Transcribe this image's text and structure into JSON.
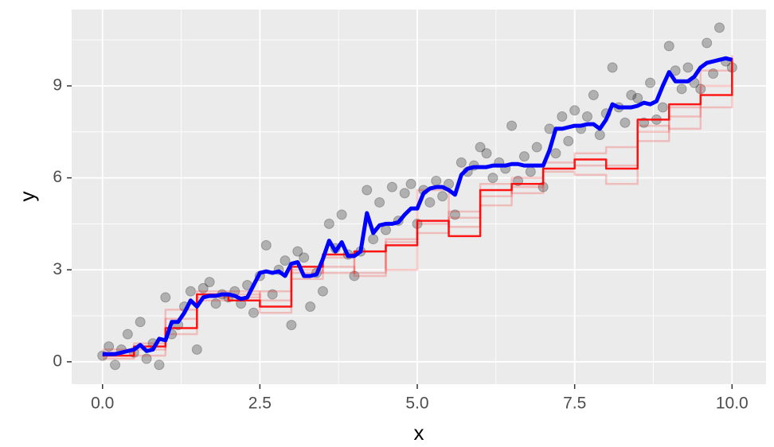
{
  "chart_data": {
    "type": "scatter",
    "xlabel": "x",
    "ylabel": "y",
    "xlim": [
      -0.49,
      10.54
    ],
    "ylim": [
      -0.73,
      11.49
    ],
    "xticks": [
      {
        "value": 0,
        "label": "0.0"
      },
      {
        "value": 2.5,
        "label": "2.5"
      },
      {
        "value": 5,
        "label": "5.0"
      },
      {
        "value": 7.5,
        "label": "7.5"
      },
      {
        "value": 10,
        "label": "10.0"
      }
    ],
    "yticks": [
      0,
      3,
      6,
      9
    ],
    "x_minor_ticks": [
      1.25,
      3.75,
      6.25,
      8.75
    ],
    "y_minor_ticks": [
      1.5,
      4.5,
      7.5,
      10.5
    ],
    "grid": true,
    "point_color": "#000000",
    "point_opacity": 0.25,
    "x": [
      0,
      0.1,
      0.2,
      0.3,
      0.4,
      0.5,
      0.6,
      0.7,
      0.8,
      0.9,
      1,
      1.1,
      1.2,
      1.3,
      1.4,
      1.5,
      1.6,
      1.7,
      1.8,
      1.9,
      2,
      2.1,
      2.2,
      2.3,
      2.4,
      2.5,
      2.6,
      2.7,
      2.8,
      2.9,
      3,
      3.1,
      3.2,
      3.3,
      3.4,
      3.5,
      3.6,
      3.7,
      3.8,
      3.9,
      4,
      4.1,
      4.2,
      4.3,
      4.4,
      4.5,
      4.6,
      4.7,
      4.8,
      4.9,
      5,
      5.1,
      5.2,
      5.3,
      5.4,
      5.5,
      5.6,
      5.7,
      5.8,
      5.9,
      6,
      6.1,
      6.2,
      6.3,
      6.4,
      6.5,
      6.6,
      6.7,
      6.8,
      6.9,
      7,
      7.1,
      7.2,
      7.3,
      7.4,
      7.5,
      7.6,
      7.7,
      7.8,
      7.9,
      8,
      8.1,
      8.2,
      8.3,
      8.4,
      8.5,
      8.6,
      8.7,
      8.8,
      8.9,
      9,
      9.1,
      9.2,
      9.3,
      9.4,
      9.5,
      9.6,
      9.7,
      9.8,
      9.9,
      10
    ],
    "y": [
      0.2,
      0.5,
      -0.1,
      0.4,
      0.9,
      0.3,
      1.3,
      0.1,
      0.6,
      -0.1,
      2.1,
      0.9,
      1.2,
      1.8,
      2.3,
      0.4,
      2.4,
      2.6,
      1.9,
      2.2,
      2.1,
      2.3,
      1.9,
      2.5,
      1.6,
      2.8,
      3.8,
      2.2,
      3.0,
      3.3,
      1.2,
      3.6,
      3.4,
      1.8,
      2.9,
      2.3,
      4.5,
      3.7,
      4.8,
      3.5,
      2.8,
      3.6,
      5.6,
      4.0,
      5.2,
      4.3,
      5.7,
      4.6,
      5.5,
      5.8,
      4.5,
      5.6,
      5.2,
      5.9,
      5.4,
      5.8,
      4.8,
      6.5,
      6.2,
      6.4,
      7.0,
      6.8,
      6.0,
      6.5,
      6.3,
      7.7,
      5.9,
      6.7,
      6.2,
      7.0,
      5.7,
      7.6,
      6.8,
      8.0,
      7.2,
      8.2,
      7.6,
      8.0,
      8.7,
      7.4,
      8.1,
      9.6,
      8.3,
      7.8,
      8.7,
      8.6,
      7.8,
      9.1,
      7.9,
      8.3,
      10.3,
      9.5,
      8.9,
      9.6,
      9.1,
      8.9,
      10.4,
      9.4,
      10.9,
      9.8,
      9.6
    ],
    "lines": [
      {
        "color": "#ff0000",
        "opacity": 0.2,
        "step": true,
        "x": [
          0,
          0.5,
          1,
          1.5,
          2,
          2.5,
          3,
          3.5,
          4,
          4.5,
          5,
          5.5,
          6,
          6.5,
          7,
          7.5,
          8,
          8.5,
          9,
          9.5,
          10
        ],
        "values": [
          0.3,
          0.6,
          1.4,
          2.1,
          2.2,
          1.6,
          2.9,
          3.4,
          2.8,
          4.0,
          5.6,
          4.4,
          5.1,
          5.7,
          6.3,
          6.4,
          6.4,
          7.5,
          8.0,
          8.3,
          9.8
        ]
      },
      {
        "color": "#ff0000",
        "opacity": 0.2,
        "step": true,
        "x": [
          0,
          0.5,
          1,
          1.5,
          2,
          2.5,
          3,
          3.5,
          4,
          4.5,
          5,
          5.5,
          6,
          6.5,
          7,
          7.5,
          8,
          8.5,
          9,
          9.5,
          10
        ],
        "values": [
          0.1,
          0.4,
          0.9,
          2.0,
          2.1,
          2.3,
          3.0,
          2.9,
          3.6,
          3.0,
          4.5,
          4.9,
          5.8,
          5.5,
          6.2,
          6.1,
          5.8,
          7.7,
          7.6,
          9.5,
          9.6
        ]
      },
      {
        "color": "#ff0000",
        "opacity": 0.2,
        "step": true,
        "x": [
          0,
          0.5,
          1,
          1.5,
          2,
          2.5,
          3,
          3.5,
          4,
          4.5,
          5,
          5.5,
          6,
          6.5,
          7,
          7.5,
          8,
          8.5,
          9,
          9.5,
          10
        ],
        "values": [
          0.4,
          0.2,
          1.7,
          2.3,
          2.3,
          2.0,
          2.7,
          3.1,
          2.9,
          3.9,
          4.2,
          4.7,
          5.4,
          6.0,
          6.5,
          6.8,
          7.0,
          7.2,
          8.3,
          9.0,
          10.0
        ]
      },
      {
        "color": "#ff0000",
        "opacity": 0.9,
        "step": true,
        "x": [
          0,
          0.5,
          1,
          1.5,
          2,
          2.5,
          3,
          3.5,
          4,
          4.5,
          5,
          5.5,
          6,
          6.5,
          7,
          7.5,
          8,
          8.5,
          9,
          9.5,
          10
        ],
        "values": [
          0.2,
          0.5,
          1.1,
          2.2,
          2.0,
          1.8,
          3.1,
          3.5,
          3.6,
          3.8,
          4.6,
          4.1,
          5.6,
          5.8,
          6.3,
          6.6,
          6.3,
          7.9,
          8.4,
          8.7,
          9.9
        ]
      },
      {
        "color": "#0000ff",
        "opacity": 1,
        "step": false,
        "x": [
          0,
          0.1,
          0.2,
          0.3,
          0.4,
          0.5,
          0.6,
          0.7,
          0.8,
          0.9,
          1,
          1.1,
          1.2,
          1.3,
          1.4,
          1.5,
          1.6,
          1.7,
          1.8,
          1.9,
          2,
          2.1,
          2.2,
          2.3,
          2.4,
          2.5,
          2.6,
          2.7,
          2.8,
          2.9,
          3,
          3.1,
          3.2,
          3.3,
          3.4,
          3.5,
          3.6,
          3.7,
          3.8,
          3.9,
          4,
          4.1,
          4.2,
          4.3,
          4.4,
          4.5,
          4.6,
          4.7,
          4.8,
          4.9,
          5,
          5.1,
          5.2,
          5.3,
          5.4,
          5.5,
          5.6,
          5.7,
          5.8,
          5.9,
          6,
          6.1,
          6.2,
          6.3,
          6.4,
          6.5,
          6.6,
          6.7,
          6.8,
          6.9,
          7,
          7.1,
          7.2,
          7.3,
          7.4,
          7.5,
          7.6,
          7.7,
          7.8,
          7.9,
          8,
          8.1,
          8.2,
          8.3,
          8.4,
          8.5,
          8.6,
          8.7,
          8.8,
          8.9,
          9,
          9.1,
          9.2,
          9.3,
          9.4,
          9.5,
          9.6,
          9.7,
          9.8,
          9.9,
          10
        ],
        "values": [
          0.25,
          0.25,
          0.25,
          0.3,
          0.35,
          0.4,
          0.55,
          0.35,
          0.4,
          0.75,
          0.7,
          1.3,
          1.3,
          1.6,
          2.0,
          1.8,
          2.1,
          2.15,
          2.15,
          2.2,
          2.2,
          2.15,
          2.05,
          2.1,
          2.5,
          2.9,
          2.95,
          2.9,
          2.95,
          2.8,
          3.2,
          3.25,
          2.8,
          2.8,
          2.85,
          3.35,
          3.95,
          3.6,
          3.9,
          3.45,
          3.45,
          3.6,
          4.85,
          4.2,
          4.45,
          4.5,
          4.5,
          4.55,
          4.8,
          5.0,
          5.0,
          5.5,
          5.65,
          5.7,
          5.7,
          5.6,
          5.45,
          6.1,
          6.3,
          6.35,
          6.35,
          6.35,
          6.4,
          6.4,
          6.4,
          6.45,
          6.45,
          6.4,
          6.4,
          6.4,
          6.4,
          6.9,
          7.6,
          7.6,
          7.65,
          7.7,
          7.7,
          7.75,
          7.75,
          7.6,
          7.9,
          8.4,
          8.3,
          8.3,
          8.3,
          8.35,
          8.45,
          8.4,
          8.5,
          9.0,
          9.45,
          9.15,
          9.15,
          9.15,
          9.3,
          9.6,
          9.75,
          9.8,
          9.85,
          9.9,
          9.85
        ]
      }
    ]
  }
}
